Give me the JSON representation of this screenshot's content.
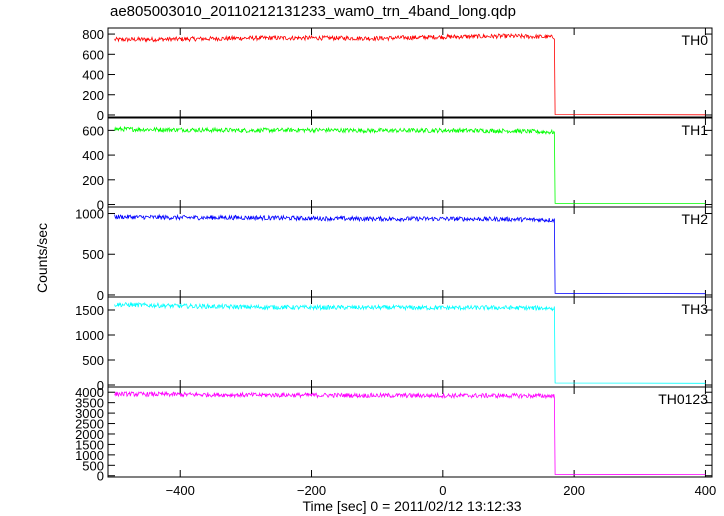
{
  "chart_data": {
    "type": "line",
    "title": "ae805003010_20110212131233_wam0_trn_4band_long.qdp",
    "xlabel": "Time [sec] 0 = 2011/02/12 13:12:33",
    "ylabel": "Counts/sec",
    "xlim": [
      -510,
      410
    ],
    "x_ticks": [
      -400,
      -200,
      0,
      200,
      400
    ],
    "x_tick_labels": [
      "−400",
      "−200",
      "0",
      "200",
      "400"
    ],
    "grid": false,
    "panels": [
      {
        "name": "TH0",
        "color": "#ff0000",
        "ylim": [
          -20,
          860
        ],
        "yticks": [
          0,
          200,
          400,
          600,
          800
        ],
        "series": [
          {
            "x": [
              -500,
              -400,
              -300,
              -200,
              -100,
              0,
              100,
              170,
              172,
              400
            ],
            "y": [
              745,
              750,
              760,
              762,
              758,
              772,
              780,
              770,
              5,
              2
            ]
          }
        ]
      },
      {
        "name": "TH1",
        "color": "#00ff00",
        "ylim": [
          -20,
          700
        ],
        "yticks": [
          0,
          200,
          400,
          600
        ],
        "series": [
          {
            "x": [
              -500,
              -400,
              -300,
              -200,
              -100,
              0,
              100,
              170,
              172,
              400
            ],
            "y": [
              610,
              605,
              600,
              603,
              598,
              600,
              596,
              585,
              10,
              8
            ]
          }
        ]
      },
      {
        "name": "TH2",
        "color": "#0000ff",
        "ylim": [
          -25,
          1080
        ],
        "yticks": [
          0,
          500,
          1000
        ],
        "series": [
          {
            "x": [
              -500,
              -400,
              -300,
              -200,
              -100,
              0,
              100,
              170,
              172,
              400
            ],
            "y": [
              960,
              950,
              950,
              940,
              935,
              935,
              930,
              920,
              20,
              15
            ]
          }
        ]
      },
      {
        "name": "TH3",
        "color": "#00ffff",
        "ylim": [
          -40,
          1760
        ],
        "yticks": [
          0,
          500,
          1000,
          1500
        ],
        "series": [
          {
            "x": [
              -500,
              -400,
              -300,
              -200,
              -100,
              0,
              100,
              170,
              172,
              400
            ],
            "y": [
              1610,
              1580,
              1560,
              1550,
              1550,
              1545,
              1545,
              1535,
              40,
              35
            ]
          }
        ]
      },
      {
        "name": "TH0123",
        "color": "#ff00ff",
        "ylim": [
          -60,
          4250
        ],
        "yticks": [
          0,
          500,
          1000,
          1500,
          2000,
          2500,
          3000,
          3500,
          4000
        ],
        "series": [
          {
            "x": [
              -500,
              -400,
              -300,
              -200,
              -100,
              0,
              100,
              170,
              172,
              400
            ],
            "y": [
              3920,
              3890,
              3870,
              3860,
              3845,
              3840,
              3835,
              3820,
              60,
              55
            ]
          }
        ]
      }
    ]
  }
}
